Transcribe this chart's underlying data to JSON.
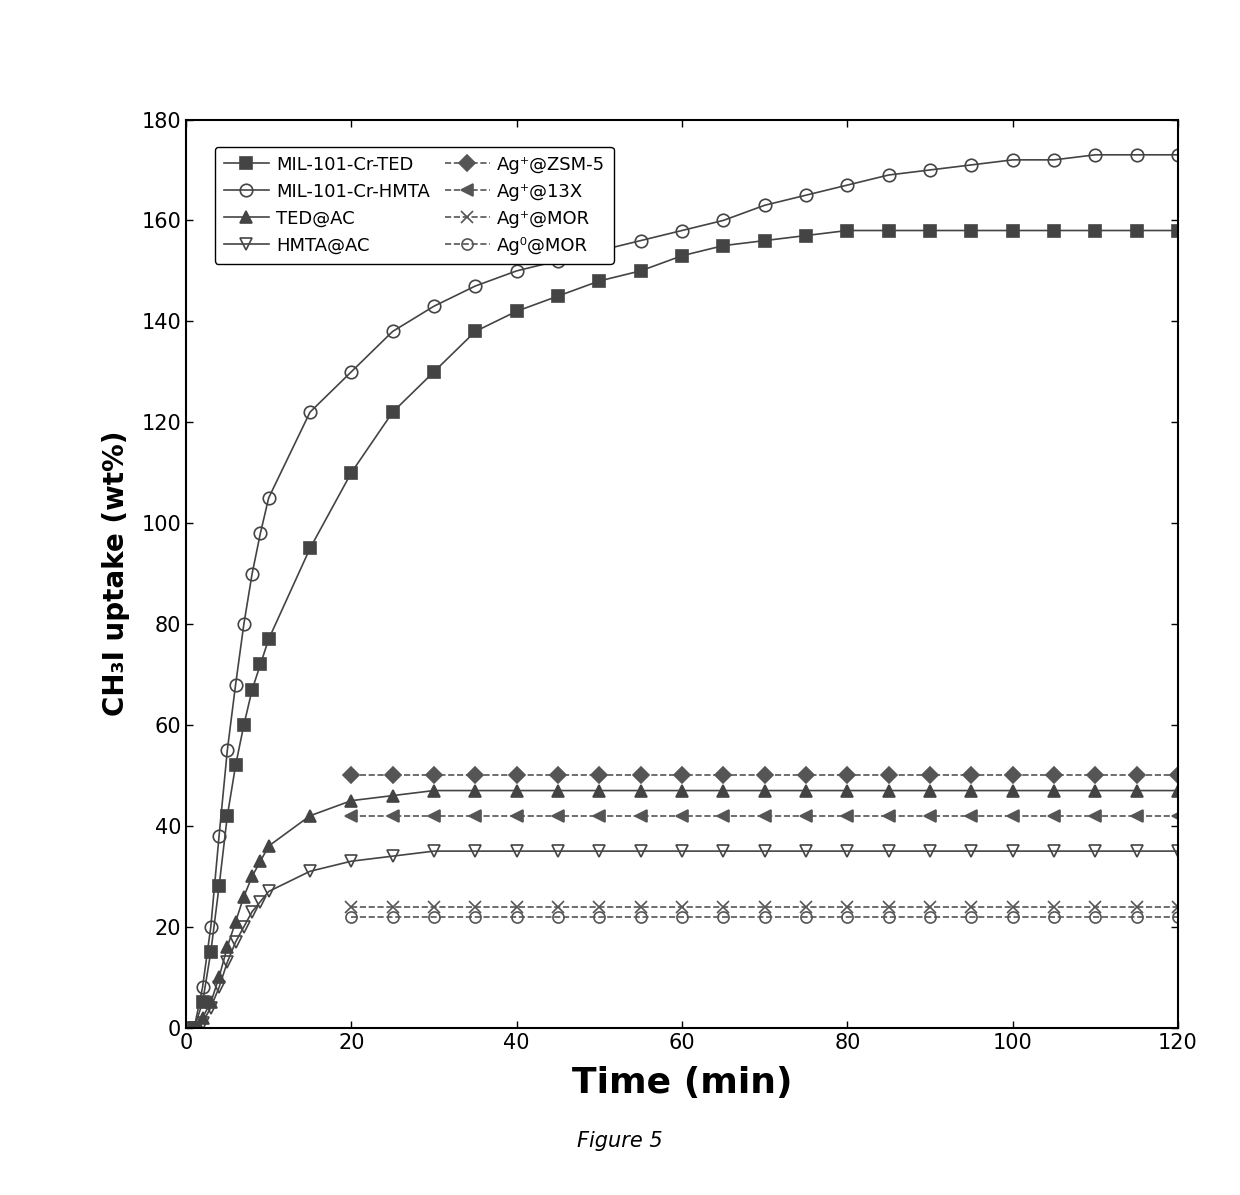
{
  "title": "Figure 5",
  "xlabel": "Time (min)",
  "ylabel": "CH₃I uptake (wt%)",
  "xlim": [
    0,
    120
  ],
  "ylim": [
    0,
    180
  ],
  "xticks": [
    0,
    20,
    40,
    60,
    80,
    100,
    120
  ],
  "yticks": [
    0,
    20,
    40,
    60,
    80,
    100,
    120,
    140,
    160,
    180
  ],
  "series": [
    {
      "label": "MIL-101-Cr-TED",
      "color": "#444444",
      "marker": "s",
      "linestyle": "-",
      "fillstyle": "full",
      "markersize": 9,
      "x": [
        1,
        2,
        3,
        4,
        5,
        6,
        7,
        8,
        9,
        10,
        15,
        20,
        25,
        30,
        35,
        40,
        45,
        50,
        55,
        60,
        65,
        70,
        75,
        80,
        85,
        90,
        95,
        100,
        105,
        110,
        115,
        120
      ],
      "y": [
        0,
        5,
        15,
        28,
        42,
        52,
        60,
        67,
        72,
        77,
        95,
        110,
        122,
        130,
        138,
        142,
        145,
        148,
        150,
        153,
        155,
        156,
        157,
        158,
        158,
        158,
        158,
        158,
        158,
        158,
        158,
        158
      ]
    },
    {
      "label": "MIL-101-Cr-HMTA",
      "color": "#444444",
      "marker": "o",
      "linestyle": "-",
      "fillstyle": "none",
      "markersize": 9,
      "x": [
        1,
        2,
        3,
        4,
        5,
        6,
        7,
        8,
        9,
        10,
        15,
        20,
        25,
        30,
        35,
        40,
        45,
        50,
        55,
        60,
        65,
        70,
        75,
        80,
        85,
        90,
        95,
        100,
        105,
        110,
        115,
        120
      ],
      "y": [
        0,
        8,
        20,
        38,
        55,
        68,
        80,
        90,
        98,
        105,
        122,
        130,
        138,
        143,
        147,
        150,
        152,
        154,
        156,
        158,
        160,
        163,
        165,
        167,
        169,
        170,
        171,
        172,
        172,
        173,
        173,
        173
      ]
    },
    {
      "label": "TED@AC",
      "color": "#444444",
      "marker": "^",
      "linestyle": "-",
      "fillstyle": "full",
      "markersize": 9,
      "x": [
        1,
        2,
        3,
        4,
        5,
        6,
        7,
        8,
        9,
        10,
        15,
        20,
        25,
        30,
        35,
        40,
        45,
        50,
        55,
        60,
        65,
        70,
        75,
        80,
        85,
        90,
        95,
        100,
        105,
        110,
        115,
        120
      ],
      "y": [
        0,
        2,
        5,
        10,
        16,
        21,
        26,
        30,
        33,
        36,
        42,
        45,
        46,
        47,
        47,
        47,
        47,
        47,
        47,
        47,
        47,
        47,
        47,
        47,
        47,
        47,
        47,
        47,
        47,
        47,
        47,
        47
      ]
    },
    {
      "label": "HMTA@AC",
      "color": "#444444",
      "marker": "v",
      "linestyle": "-",
      "fillstyle": "none",
      "markersize": 9,
      "x": [
        1,
        2,
        3,
        4,
        5,
        6,
        7,
        8,
        9,
        10,
        15,
        20,
        25,
        30,
        35,
        40,
        45,
        50,
        55,
        60,
        65,
        70,
        75,
        80,
        85,
        90,
        95,
        100,
        105,
        110,
        115,
        120
      ],
      "y": [
        0,
        1,
        4,
        8,
        13,
        17,
        20,
        23,
        25,
        27,
        31,
        33,
        34,
        35,
        35,
        35,
        35,
        35,
        35,
        35,
        35,
        35,
        35,
        35,
        35,
        35,
        35,
        35,
        35,
        35,
        35,
        35
      ]
    },
    {
      "label": "Ag⁺@ZSM-5",
      "color": "#555555",
      "marker": "D",
      "linestyle": "--",
      "fillstyle": "full",
      "markersize": 8,
      "x": [
        20,
        25,
        30,
        35,
        40,
        45,
        50,
        55,
        60,
        65,
        70,
        75,
        80,
        85,
        90,
        95,
        100,
        105,
        110,
        115,
        120
      ],
      "y": [
        50,
        50,
        50,
        50,
        50,
        50,
        50,
        50,
        50,
        50,
        50,
        50,
        50,
        50,
        50,
        50,
        50,
        50,
        50,
        50,
        50
      ]
    },
    {
      "label": "Ag⁺@13X",
      "color": "#555555",
      "marker": "<",
      "linestyle": "--",
      "fillstyle": "full",
      "markersize": 8,
      "x": [
        20,
        25,
        30,
        35,
        40,
        45,
        50,
        55,
        60,
        65,
        70,
        75,
        80,
        85,
        90,
        95,
        100,
        105,
        110,
        115,
        120
      ],
      "y": [
        42,
        42,
        42,
        42,
        42,
        42,
        42,
        42,
        42,
        42,
        42,
        42,
        42,
        42,
        42,
        42,
        42,
        42,
        42,
        42,
        42
      ]
    },
    {
      "label": "Ag⁺@MOR",
      "color": "#555555",
      "marker": "x",
      "linestyle": "--",
      "fillstyle": "full",
      "markersize": 8,
      "x": [
        20,
        25,
        30,
        35,
        40,
        45,
        50,
        55,
        60,
        65,
        70,
        75,
        80,
        85,
        90,
        95,
        100,
        105,
        110,
        115,
        120
      ],
      "y": [
        24,
        24,
        24,
        24,
        24,
        24,
        24,
        24,
        24,
        24,
        24,
        24,
        24,
        24,
        24,
        24,
        24,
        24,
        24,
        24,
        24
      ]
    },
    {
      "label": "Ag⁰@MOR",
      "color": "#555555",
      "marker": "o",
      "linestyle": "--",
      "fillstyle": "none",
      "markersize": 8,
      "x": [
        20,
        25,
        30,
        35,
        40,
        45,
        50,
        55,
        60,
        65,
        70,
        75,
        80,
        85,
        90,
        95,
        100,
        105,
        110,
        115,
        120
      ],
      "y": [
        22,
        22,
        22,
        22,
        22,
        22,
        22,
        22,
        22,
        22,
        22,
        22,
        22,
        22,
        22,
        22,
        22,
        22,
        22,
        22,
        22
      ]
    }
  ],
  "figure_caption": "Figure 5",
  "left_col_legend": [
    "MIL-101-Cr-TED",
    "MIL-101-Cr-HMTA",
    "TED@AC",
    "HMTA@AC"
  ],
  "right_col_legend": [
    "Ag⁺@ZSM-5",
    "Ag⁺@13X",
    "Ag⁺@MOR",
    "Ag⁰@MOR"
  ]
}
